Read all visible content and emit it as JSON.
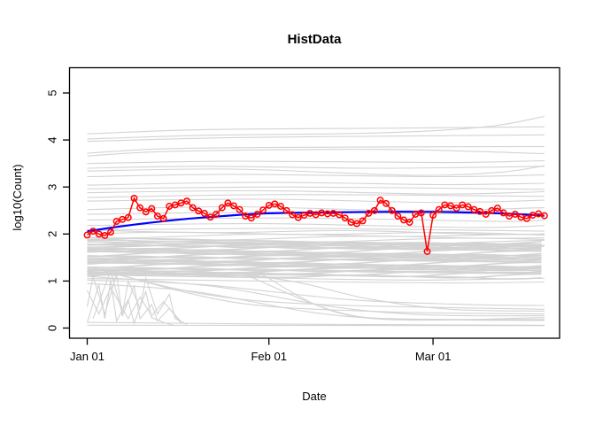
{
  "chart_data": {
    "type": "line",
    "title": "HistData",
    "xlabel": "Date",
    "ylabel": "log10(Count)",
    "x_tick_labels": [
      "Jan 01",
      "Feb 01",
      "Mar 01"
    ],
    "x_tick_days": [
      0,
      31,
      59
    ],
    "y_ticks": [
      0,
      1,
      2,
      3,
      4,
      5
    ],
    "ylim": [
      -0.15,
      5.55
    ],
    "xlim_days": [
      -3,
      80.6
    ],
    "grid": false,
    "legend": "none",
    "colors": {
      "current_series": "#FF0000",
      "smooth_trend": "#0000FF",
      "history_lines": "#D3D3D3",
      "axis": "#000000",
      "background": "#FFFFFF"
    },
    "current_series": {
      "name": "current-season-daily-log10-count",
      "marker": "open-circle",
      "start_day": 0,
      "values": [
        1.98,
        2.06,
        2.0,
        1.97,
        2.04,
        2.27,
        2.31,
        2.35,
        2.76,
        2.56,
        2.47,
        2.54,
        2.38,
        2.33,
        2.59,
        2.62,
        2.66,
        2.7,
        2.56,
        2.49,
        2.44,
        2.36,
        2.42,
        2.56,
        2.66,
        2.6,
        2.52,
        2.38,
        2.34,
        2.42,
        2.51,
        2.61,
        2.64,
        2.59,
        2.5,
        2.41,
        2.35,
        2.4,
        2.44,
        2.41,
        2.45,
        2.43,
        2.44,
        2.41,
        2.34,
        2.25,
        2.22,
        2.28,
        2.44,
        2.5,
        2.72,
        2.65,
        2.5,
        2.38,
        2.3,
        2.25,
        2.42,
        2.45,
        1.63,
        2.4,
        2.52,
        2.62,
        2.6,
        2.55,
        2.62,
        2.58,
        2.52,
        2.48,
        2.42,
        2.5,
        2.55,
        2.45,
        2.38,
        2.42,
        2.36,
        2.33,
        2.4,
        2.43,
        2.39
      ]
    },
    "smooth_trend": {
      "name": "smooth-fit",
      "points": [
        [
          0,
          2.06
        ],
        [
          8,
          2.2
        ],
        [
          16,
          2.31
        ],
        [
          24,
          2.39
        ],
        [
          31,
          2.44
        ],
        [
          40,
          2.46
        ],
        [
          50,
          2.47
        ],
        [
          60,
          2.47
        ],
        [
          68,
          2.45
        ],
        [
          74,
          2.42
        ],
        [
          78,
          2.39
        ]
      ]
    },
    "history_band": {
      "v_min": 1.1,
      "v_max": 1.82,
      "count": 34,
      "day_start": 0,
      "day_end": 78
    },
    "history_strands": {
      "levels": [
        1.76,
        1.8,
        1.84,
        1.88,
        1.92,
        1.96,
        2.0,
        2.04
      ],
      "day_start": 0,
      "day_end": 78
    },
    "history_lines": [
      {
        "points": [
          [
            0,
            4.13
          ],
          [
            20,
            4.22
          ],
          [
            50,
            4.25
          ],
          [
            78,
            4.28
          ]
        ]
      },
      {
        "points": [
          [
            0,
            4.02
          ],
          [
            20,
            4.1
          ],
          [
            50,
            4.15
          ],
          [
            68,
            4.28
          ],
          [
            78,
            4.5
          ]
        ]
      },
      {
        "points": [
          [
            0,
            3.97
          ],
          [
            25,
            4.05
          ],
          [
            60,
            4.09
          ],
          [
            78,
            4.11
          ]
        ]
      },
      {
        "points": [
          [
            0,
            3.72
          ],
          [
            15,
            3.82
          ],
          [
            45,
            3.85
          ],
          [
            78,
            3.86
          ]
        ]
      },
      {
        "points": [
          [
            0,
            3.66
          ],
          [
            15,
            3.76
          ],
          [
            50,
            3.8
          ],
          [
            78,
            3.71
          ]
        ]
      },
      {
        "points": [
          [
            0,
            3.5
          ],
          [
            25,
            3.55
          ],
          [
            60,
            3.52
          ],
          [
            78,
            3.56
          ]
        ]
      },
      {
        "points": [
          [
            0,
            3.4
          ],
          [
            20,
            3.44
          ],
          [
            50,
            3.4
          ],
          [
            78,
            3.44
          ]
        ]
      },
      {
        "points": [
          [
            0,
            3.34
          ],
          [
            25,
            3.38
          ],
          [
            55,
            3.25
          ],
          [
            70,
            3.31
          ],
          [
            78,
            3.45
          ]
        ]
      },
      {
        "points": [
          [
            0,
            3.22
          ],
          [
            25,
            3.27
          ],
          [
            60,
            3.22
          ],
          [
            78,
            3.26
          ]
        ]
      },
      {
        "points": [
          [
            0,
            3.04
          ],
          [
            30,
            3.1
          ],
          [
            60,
            3.05
          ],
          [
            78,
            3.08
          ]
        ]
      },
      {
        "points": [
          [
            0,
            2.96
          ],
          [
            35,
            3.0
          ],
          [
            78,
            2.95
          ]
        ]
      },
      {
        "points": [
          [
            0,
            2.88
          ],
          [
            30,
            2.92
          ],
          [
            60,
            2.85
          ],
          [
            78,
            2.9
          ]
        ]
      },
      {
        "points": [
          [
            0,
            2.78
          ],
          [
            35,
            2.84
          ],
          [
            78,
            2.8
          ]
        ]
      },
      {
        "points": [
          [
            0,
            2.7
          ],
          [
            30,
            2.74
          ],
          [
            60,
            2.67
          ],
          [
            78,
            2.72
          ]
        ]
      },
      {
        "points": [
          [
            0,
            2.52
          ],
          [
            25,
            2.58
          ],
          [
            55,
            2.5
          ],
          [
            78,
            2.56
          ]
        ]
      },
      {
        "points": [
          [
            0,
            2.42
          ],
          [
            30,
            2.46
          ],
          [
            78,
            2.42
          ]
        ]
      },
      {
        "points": [
          [
            0,
            2.3
          ],
          [
            35,
            2.34
          ],
          [
            70,
            2.27
          ],
          [
            78,
            2.3
          ]
        ]
      },
      {
        "points": [
          [
            0,
            2.18
          ],
          [
            30,
            2.22
          ],
          [
            65,
            2.14
          ],
          [
            78,
            2.18
          ]
        ]
      },
      {
        "points": [
          [
            0,
            2.08
          ],
          [
            35,
            2.12
          ],
          [
            78,
            2.06
          ]
        ]
      },
      {
        "points": [
          [
            0,
            1.13
          ],
          [
            25,
            1.08
          ],
          [
            55,
            1.02
          ],
          [
            78,
            1.06
          ]
        ]
      },
      {
        "points": [
          [
            0,
            1.05
          ],
          [
            30,
            1.0
          ],
          [
            60,
            0.96
          ],
          [
            78,
            0.98
          ]
        ]
      },
      {
        "points": [
          [
            0,
            1.02
          ],
          [
            20,
            0.92
          ],
          [
            45,
            0.6
          ],
          [
            65,
            0.5
          ],
          [
            78,
            0.48
          ]
        ]
      },
      {
        "points": [
          [
            0,
            1.1
          ],
          [
            22,
            0.88
          ],
          [
            42,
            0.45
          ],
          [
            58,
            0.28
          ],
          [
            78,
            0.26
          ]
        ]
      },
      {
        "points": [
          [
            0,
            0.95
          ],
          [
            18,
            0.78
          ],
          [
            38,
            0.34
          ],
          [
            52,
            0.2
          ],
          [
            78,
            0.18
          ]
        ]
      },
      {
        "points": [
          [
            0,
            1.18
          ],
          [
            30,
            1.08
          ],
          [
            48,
            0.62
          ],
          [
            62,
            0.4
          ],
          [
            78,
            0.36
          ]
        ]
      },
      {
        "points": [
          [
            0,
            0.06
          ],
          [
            78,
            0.05
          ]
        ]
      },
      {
        "points": [
          [
            0,
            0.12
          ],
          [
            40,
            0.08
          ],
          [
            78,
            0.06
          ]
        ]
      },
      {
        "points": [
          [
            30,
            1.12
          ],
          [
            46,
            0.24
          ],
          [
            78,
            0.22
          ]
        ]
      },
      {
        "points": [
          [
            28,
            1.08
          ],
          [
            44,
            0.3
          ],
          [
            60,
            0.18
          ],
          [
            78,
            0.16
          ]
        ]
      },
      {
        "points": [
          [
            0,
            1.3
          ],
          [
            20,
            0.72
          ],
          [
            40,
            0.5
          ],
          [
            78,
            0.4
          ]
        ]
      },
      {
        "points": [
          [
            2,
            1.25
          ],
          [
            25,
            0.55
          ],
          [
            50,
            0.35
          ],
          [
            78,
            0.3
          ]
        ]
      },
      {
        "jagged": true,
        "points": [
          [
            0,
            0.12
          ],
          [
            2,
            0.92
          ],
          [
            3,
            0.2
          ],
          [
            4,
            1.02
          ],
          [
            5,
            0.15
          ],
          [
            7,
            0.6
          ],
          [
            8,
            0.1
          ],
          [
            10,
            0.78
          ],
          [
            11,
            0.22
          ],
          [
            13,
            0.12
          ],
          [
            15,
            0.05
          ]
        ]
      },
      {
        "jagged": true,
        "points": [
          [
            0,
            0.45
          ],
          [
            1,
            1.1
          ],
          [
            3,
            0.3
          ],
          [
            5,
            1.15
          ],
          [
            6,
            0.25
          ],
          [
            8,
            0.9
          ],
          [
            9,
            0.2
          ],
          [
            11,
            0.5
          ],
          [
            12,
            0.15
          ],
          [
            14,
            0.42
          ],
          [
            16,
            0.1
          ]
        ]
      },
      {
        "jagged": true,
        "points": [
          [
            1,
            0.2
          ],
          [
            4,
            1.22
          ],
          [
            6,
            0.3
          ],
          [
            7,
            1.0
          ],
          [
            9,
            0.42
          ],
          [
            10,
            1.06
          ],
          [
            12,
            0.3
          ],
          [
            14,
            0.72
          ],
          [
            15,
            0.2
          ],
          [
            17,
            0.08
          ]
        ]
      },
      {
        "jagged": true,
        "points": [
          [
            0,
            0.8
          ],
          [
            2,
            0.3
          ],
          [
            4,
            0.86
          ],
          [
            7,
            0.2
          ],
          [
            9,
            0.66
          ],
          [
            11,
            0.26
          ],
          [
            13,
            0.56
          ],
          [
            16,
            0.14
          ]
        ]
      }
    ]
  }
}
